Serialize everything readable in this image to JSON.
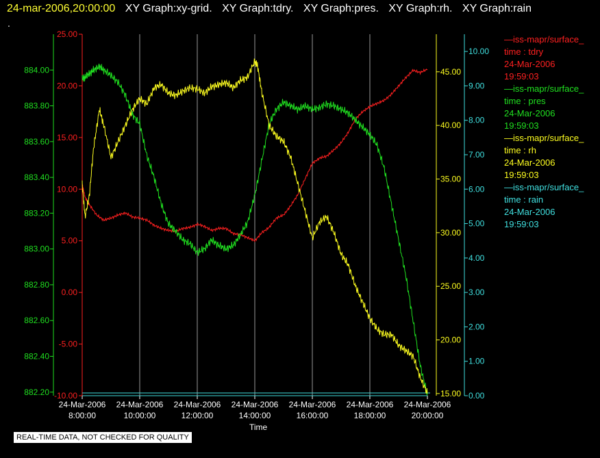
{
  "header": {
    "timestamp": "24-mar-2006,20:00:00",
    "graphs": [
      "XY Graph:xy-grid.",
      "XY Graph:tdry.",
      "XY Graph:pres.",
      "XY Graph:rh.",
      "XY Graph:rain"
    ],
    "dot": "."
  },
  "notice": "REAL-TIME DATA, NOT CHECKED FOR QUALITY",
  "legend": [
    {
      "source": "—iss-mapr/surface_",
      "field": "time : tdry",
      "date": "24-Mar-2006",
      "time": "19:59:03",
      "color": "#ff2020"
    },
    {
      "source": "—iss-mapr/surface_",
      "field": "time : pres",
      "date": "24-Mar-2006",
      "time": "19:59:03",
      "color": "#20e020"
    },
    {
      "source": "—iss-mapr/surface_",
      "field": "time : rh",
      "date": "24-Mar-2006",
      "time": "19:59:03",
      "color": "#ffff20"
    },
    {
      "source": "—iss-mapr/surface_",
      "field": "time : rain",
      "date": "24-Mar-2006",
      "time": "19:59:03",
      "color": "#40e0e0"
    }
  ],
  "chart_data": {
    "type": "line",
    "xlabel": "Time",
    "x_ticks": [
      {
        "date": "24-Mar-2006",
        "time": "8:00:00"
      },
      {
        "date": "24-Mar-2006",
        "time": "10:00:00"
      },
      {
        "date": "24-Mar-2006",
        "time": "12:00:00"
      },
      {
        "date": "24-Mar-2006",
        "time": "14:00:00"
      },
      {
        "date": "24-Mar-2006",
        "time": "16:00:00"
      },
      {
        "date": "24-Mar-2006",
        "time": "18:00:00"
      },
      {
        "date": "24-Mar-2006",
        "time": "20:00:00"
      }
    ],
    "xlim_hours": [
      8,
      20
    ],
    "grid": "vertical",
    "axes": {
      "pres": {
        "ticks": [
          "884.00",
          "883.80",
          "883.60",
          "883.40",
          "883.20",
          "883.00",
          "882.80",
          "882.60",
          "882.40",
          "882.20"
        ],
        "ylim": [
          882.18,
          884.2
        ],
        "color": "#20e020"
      },
      "tdry": {
        "ticks": [
          "25.00",
          "20.00",
          "15.00",
          "10.00",
          "5.00",
          "0.00",
          "-5.00",
          "-10.00"
        ],
        "ylim": [
          -10,
          25
        ],
        "color": "#ff2020"
      },
      "rh": {
        "ticks": [
          "45.00",
          "40.00",
          "35.00",
          "30.00",
          "25.00",
          "20.00",
          "15.00"
        ],
        "ylim": [
          14.8,
          48.5
        ],
        "color": "#ffff20"
      },
      "rain": {
        "ticks": [
          "10.00",
          "9.00",
          "8.00",
          "7.00",
          "6.00",
          "5.00",
          "4.00",
          "3.00",
          "2.00",
          "1.00",
          "0.00"
        ],
        "ylim": [
          0,
          10.5
        ],
        "color": "#40e0e0"
      }
    },
    "series": [
      {
        "name": "tdry",
        "color": "#ff2020",
        "x": [
          8.0,
          8.1,
          8.25,
          8.5,
          8.75,
          9.0,
          9.25,
          9.5,
          9.75,
          10.0,
          10.25,
          10.5,
          10.75,
          11.0,
          11.25,
          11.5,
          11.75,
          12.0,
          12.25,
          12.5,
          12.75,
          13.0,
          13.25,
          13.5,
          13.75,
          14.0,
          14.25,
          14.5,
          14.75,
          15.0,
          15.25,
          15.5,
          15.75,
          16.0,
          16.25,
          16.5,
          16.75,
          17.0,
          17.25,
          17.5,
          17.75,
          18.0,
          18.25,
          18.5,
          18.75,
          19.0,
          19.25,
          19.5,
          19.75,
          20.0
        ],
        "y": [
          10.5,
          9.2,
          8.5,
          7.5,
          7.0,
          7.2,
          7.5,
          7.7,
          7.3,
          7.2,
          7.0,
          6.5,
          6.2,
          6.0,
          5.9,
          6.2,
          6.3,
          6.6,
          6.4,
          6.0,
          6.2,
          6.2,
          5.7,
          5.6,
          5.3,
          5.0,
          5.8,
          6.3,
          7.2,
          7.5,
          8.4,
          9.5,
          11.0,
          12.5,
          13.0,
          13.2,
          13.8,
          14.5,
          15.5,
          16.8,
          17.5,
          18.0,
          18.3,
          18.6,
          19.2,
          20.0,
          20.8,
          21.5,
          21.3,
          21.6
        ]
      },
      {
        "name": "pres",
        "color": "#20e020",
        "x": [
          8.0,
          8.1,
          8.25,
          8.4,
          8.6,
          8.75,
          9.0,
          9.25,
          9.5,
          9.75,
          10.0,
          10.25,
          10.5,
          10.75,
          11.0,
          11.25,
          11.5,
          11.75,
          12.0,
          12.25,
          12.5,
          12.75,
          13.0,
          13.25,
          13.5,
          13.75,
          14.0,
          14.25,
          14.5,
          14.75,
          15.0,
          15.25,
          15.5,
          15.75,
          16.0,
          16.25,
          16.5,
          16.75,
          17.0,
          17.25,
          17.5,
          17.75,
          18.0,
          18.25,
          18.5,
          18.75,
          19.0,
          19.25,
          19.5,
          19.75,
          20.0
        ],
        "y": [
          883.95,
          883.96,
          883.98,
          884.0,
          884.02,
          884.0,
          883.97,
          883.93,
          883.86,
          883.75,
          883.7,
          883.52,
          883.4,
          883.25,
          883.14,
          883.1,
          883.05,
          883.03,
          882.98,
          883.0,
          883.05,
          883.02,
          883.0,
          883.02,
          883.08,
          883.15,
          883.3,
          883.5,
          883.7,
          883.78,
          883.82,
          883.8,
          883.78,
          883.8,
          883.78,
          883.79,
          883.81,
          883.8,
          883.78,
          883.76,
          883.72,
          883.68,
          883.64,
          883.58,
          883.45,
          883.25,
          883.05,
          882.85,
          882.6,
          882.35,
          882.18
        ]
      },
      {
        "name": "rh",
        "color": "#ffff20",
        "x": [
          8.0,
          8.1,
          8.25,
          8.4,
          8.6,
          8.75,
          9.0,
          9.25,
          9.5,
          9.75,
          10.0,
          10.25,
          10.5,
          10.75,
          11.0,
          11.25,
          11.5,
          11.75,
          12.0,
          12.25,
          12.5,
          12.75,
          13.0,
          13.25,
          13.5,
          13.75,
          14.0,
          14.1,
          14.25,
          14.5,
          14.75,
          15.0,
          15.25,
          15.5,
          15.75,
          16.0,
          16.25,
          16.5,
          16.75,
          17.0,
          17.25,
          17.5,
          17.75,
          18.0,
          18.25,
          18.5,
          18.75,
          19.0,
          19.25,
          19.5,
          19.75,
          20.0
        ],
        "y": [
          34.5,
          31.5,
          33.5,
          38.0,
          41.5,
          40.0,
          37.0,
          38.5,
          40.0,
          41.5,
          42.5,
          42.0,
          43.5,
          43.8,
          43.0,
          42.8,
          43.2,
          43.5,
          43.4,
          43.0,
          43.6,
          43.8,
          44.0,
          43.5,
          44.2,
          44.5,
          46.0,
          45.5,
          43.0,
          40.0,
          39.0,
          38.5,
          37.0,
          34.5,
          32.0,
          29.5,
          31.0,
          31.5,
          30.0,
          28.0,
          27.0,
          25.0,
          23.5,
          22.0,
          21.0,
          20.5,
          20.5,
          19.5,
          19.0,
          18.5,
          16.5,
          15.0
        ]
      },
      {
        "name": "rain",
        "color": "#40e0e0",
        "x": [
          8.0,
          20.0
        ],
        "y": [
          0.0,
          0.0
        ]
      }
    ]
  }
}
